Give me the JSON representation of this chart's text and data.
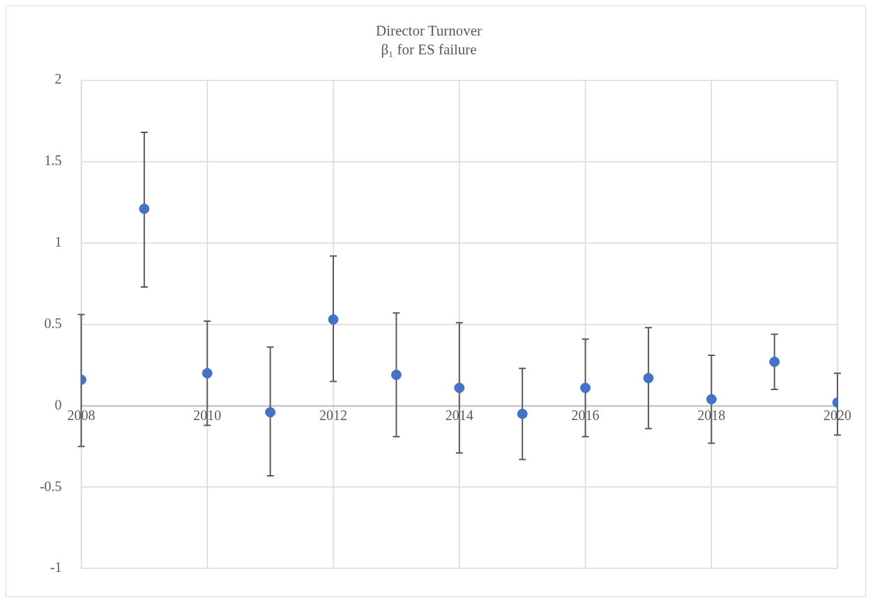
{
  "chart_data": {
    "type": "scatter",
    "title": "Director Turnover",
    "subtitle": "β₁ for ES failure",
    "x": [
      2008,
      2009,
      2010,
      2011,
      2012,
      2013,
      2014,
      2015,
      2016,
      2017,
      2018,
      2019,
      2020
    ],
    "series": [
      {
        "color": "#4472c4",
        "values": [
          0.16,
          1.21,
          0.2,
          -0.04,
          0.53,
          0.19,
          0.11,
          -0.05,
          0.11,
          0.17,
          0.04,
          0.27,
          0.02
        ],
        "errors": [
          [
            -0.25,
            0.56
          ],
          [
            0.73,
            1.68
          ],
          [
            -0.12,
            0.52
          ],
          [
            -0.43,
            0.36
          ],
          [
            0.15,
            0.92
          ],
          [
            -0.19,
            0.57
          ],
          [
            -0.29,
            0.51
          ],
          [
            -0.33,
            0.23
          ],
          [
            -0.19,
            0.41
          ],
          [
            -0.14,
            0.48
          ],
          [
            -0.23,
            0.31
          ],
          [
            0.1,
            0.44
          ],
          [
            -0.18,
            0.2
          ]
        ]
      }
    ],
    "xlim": [
      2008,
      2020
    ],
    "xticks": [
      2008,
      2010,
      2012,
      2014,
      2016,
      2018,
      2020
    ],
    "ylim": [
      -1,
      2
    ],
    "yticks": [
      -1,
      -0.5,
      0,
      0.5,
      1,
      1.5,
      2
    ],
    "grid": true,
    "legend": false,
    "marker": "circle"
  }
}
